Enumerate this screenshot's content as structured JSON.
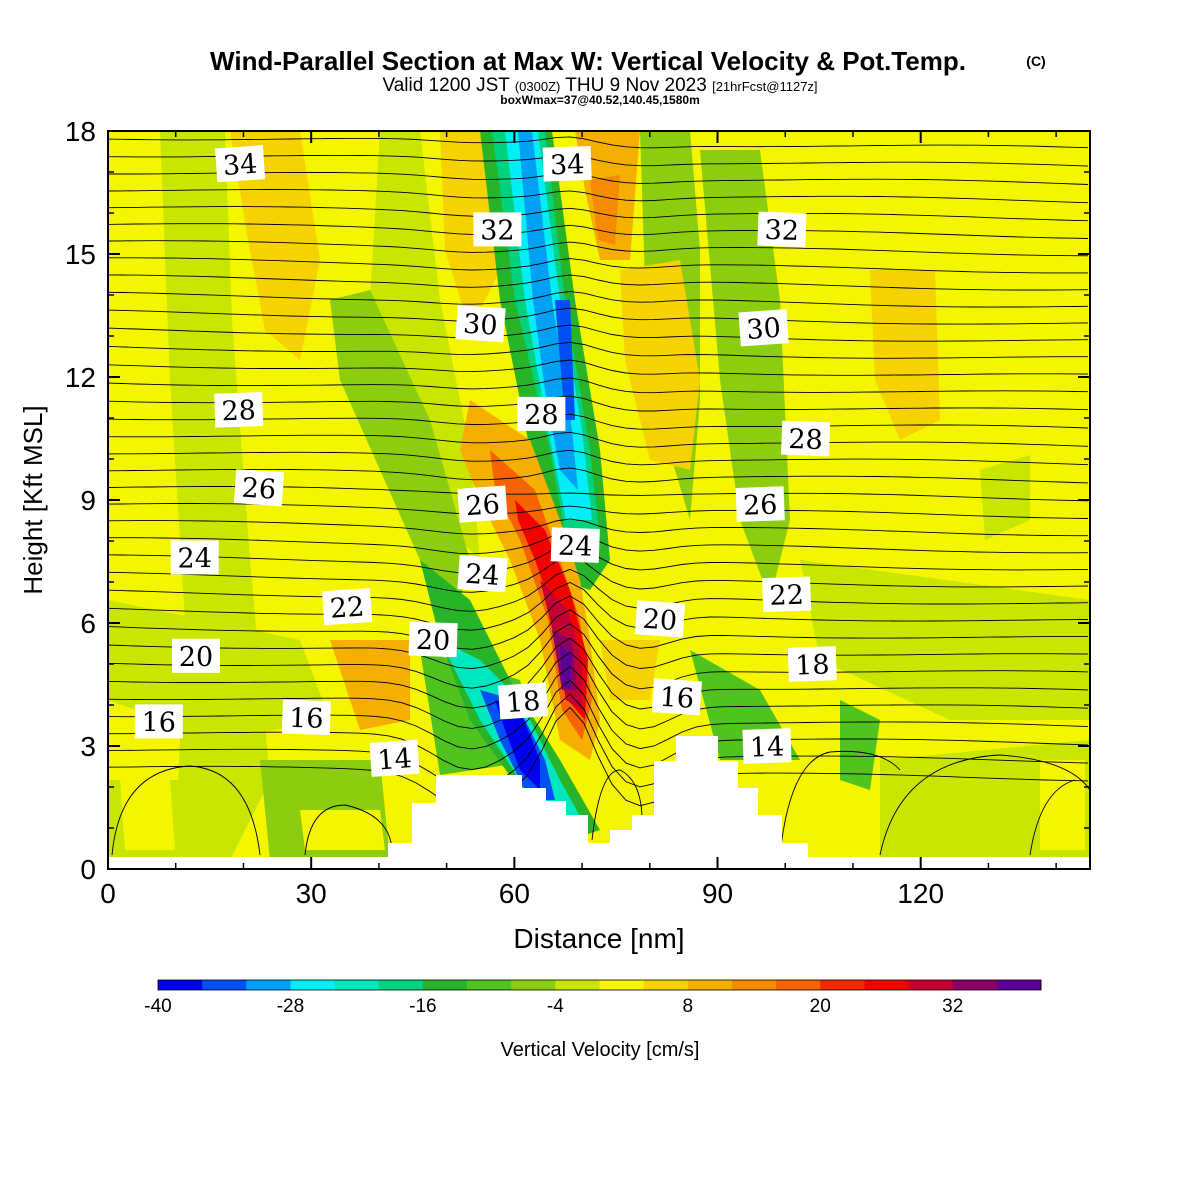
{
  "chart_data": {
    "type": "heatmap",
    "title": "Wind-Parallel Section at Max W: Vertical Velocity & Pot.Temp.",
    "title_mark": "(C)",
    "subtitle": {
      "part1": "Valid 1200 JST",
      "part2": "(0300Z)",
      "part3": "THU 9 Nov 2023",
      "part4": "[21hrFcst@1127z]"
    },
    "box_text": "boxWmax=37@40.52,140.45,1580m",
    "xlabel": "Distance [nm]",
    "ylabel": "Height [Kft MSL]",
    "xlim": [
      0,
      145
    ],
    "ylim": [
      0,
      18
    ],
    "xticks": [
      "0",
      "30",
      "60",
      "90",
      "120"
    ],
    "yticks": [
      "0",
      "3",
      "6",
      "9",
      "12",
      "15",
      "18"
    ],
    "colorbar": {
      "label": "Vertical Velocity [cm/s]",
      "min": -40,
      "max": 40,
      "step": 4,
      "tick_labels": [
        "-40",
        "-28",
        "-16",
        "-4",
        "8",
        "20",
        "32"
      ],
      "colors": [
        "#0000f0",
        "#0050f5",
        "#00a0f5",
        "#00eef5",
        "#00e6be",
        "#00d27d",
        "#28b428",
        "#50c31e",
        "#8ccd0f",
        "#c8e600",
        "#f5f500",
        "#f5d200",
        "#f5af00",
        "#f58c00",
        "#f56400",
        "#f52800",
        "#f50000",
        "#c30032",
        "#8c0064",
        "#5a0096"
      ]
    },
    "contour_labels": [
      {
        "text": "34",
        "x": 19.5,
        "y": 17.2
      },
      {
        "text": "34",
        "x": 67.8,
        "y": 17.2
      },
      {
        "text": "32",
        "x": 57.5,
        "y": 15.6
      },
      {
        "text": "32",
        "x": 99.5,
        "y": 15.6
      },
      {
        "text": "30",
        "x": 55.0,
        "y": 13.3
      },
      {
        "text": "30",
        "x": 96.8,
        "y": 13.2
      },
      {
        "text": "28",
        "x": 19.3,
        "y": 11.2
      },
      {
        "text": "28",
        "x": 64.0,
        "y": 11.1
      },
      {
        "text": "28",
        "x": 103.0,
        "y": 10.5
      },
      {
        "text": "26",
        "x": 22.3,
        "y": 9.3
      },
      {
        "text": "26",
        "x": 55.3,
        "y": 8.9
      },
      {
        "text": "26",
        "x": 96.3,
        "y": 8.9
      },
      {
        "text": "24",
        "x": 12.8,
        "y": 7.6
      },
      {
        "text": "24",
        "x": 69.0,
        "y": 7.9
      },
      {
        "text": "24",
        "x": 55.3,
        "y": 7.2
      },
      {
        "text": "22",
        "x": 35.3,
        "y": 6.4
      },
      {
        "text": "22",
        "x": 100.2,
        "y": 6.7
      },
      {
        "text": "20",
        "x": 13.0,
        "y": 5.2
      },
      {
        "text": "20",
        "x": 48.0,
        "y": 5.6
      },
      {
        "text": "20",
        "x": 81.5,
        "y": 6.1
      },
      {
        "text": "18",
        "x": 61.3,
        "y": 4.1
      },
      {
        "text": "18",
        "x": 104.0,
        "y": 5.0
      },
      {
        "text": "16",
        "x": 7.5,
        "y": 3.6
      },
      {
        "text": "16",
        "x": 29.3,
        "y": 3.7
      },
      {
        "text": "16",
        "x": 84.0,
        "y": 4.2
      },
      {
        "text": "14",
        "x": 42.3,
        "y": 2.7
      },
      {
        "text": "14",
        "x": 97.3,
        "y": 3.0
      }
    ]
  }
}
